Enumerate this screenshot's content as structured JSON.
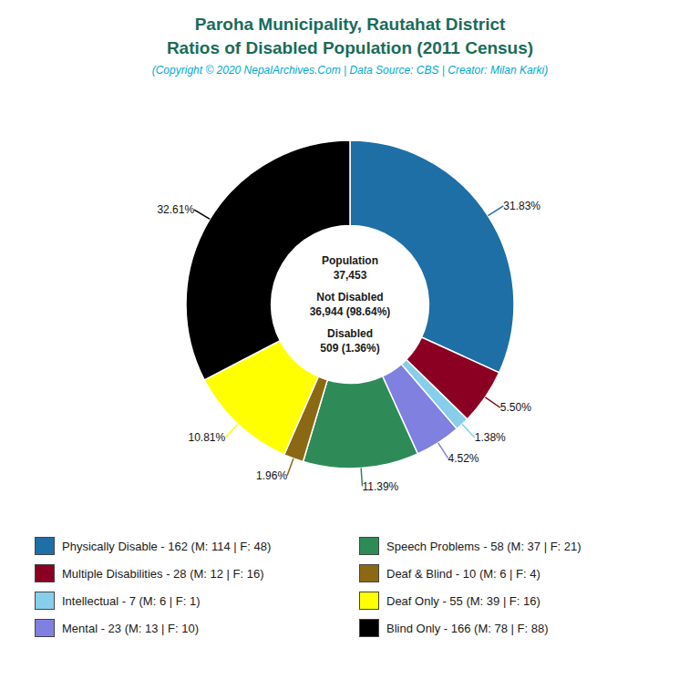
{
  "chart_data": {
    "type": "pie",
    "title": [
      "Paroha Municipality, Rautahat District",
      "Ratios of Disabled Population (2011 Census)"
    ],
    "subtitle": "(Copyright © 2020 NepalArchives.Com | Data Source: CBS | Creator: Milan Karki)",
    "categories": [
      "Physically Disable - 162 (M: 114 | F: 48)",
      "Multiple Disabilities - 28 (M: 12 | F: 16)",
      "Intellectual - 7 (M: 6 | F: 1)",
      "Mental - 23 (M: 13 | F: 10)",
      "Speech Problems - 58 (M: 37 | F: 21)",
      "Deaf & Blind - 10 (M: 6 | F: 4)",
      "Deaf Only - 55 (M: 39 | F: 16)",
      "Blind Only - 166 (M: 78 | F: 88)"
    ],
    "values": [
      31.83,
      5.5,
      1.38,
      4.52,
      11.39,
      1.96,
      10.81,
      32.61
    ],
    "value_labels": [
      "31.83%",
      "5.50%",
      "1.38%",
      "4.52%",
      "11.39%",
      "1.96%",
      "10.81%",
      "32.61%"
    ],
    "colors": [
      "#1e6fa5",
      "#8b0022",
      "#87ceeb",
      "#8080e0",
      "#2e8b57",
      "#8b6914",
      "#ffff00",
      "#000000"
    ],
    "data_labels": true,
    "legend": "bottom",
    "annotations": [
      "Population",
      "37,453",
      "Not Disabled",
      "36,944 (98.64%)",
      "Disabled",
      "509 (1.36%)"
    ]
  }
}
